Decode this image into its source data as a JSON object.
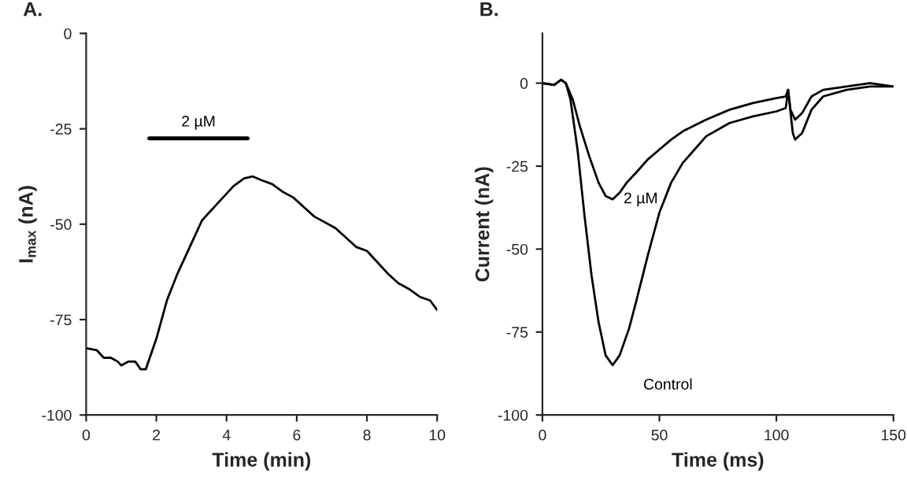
{
  "chart_data": [
    {
      "type": "line",
      "title": "A.",
      "xlabel": "Time (min)",
      "ylabel": "I$_{max}$ (nA)",
      "xlim": [
        0,
        10
      ],
      "ylim": [
        -100,
        0
      ],
      "xticks": [
        0,
        2,
        4,
        6,
        8,
        10
      ],
      "yticks": [
        -100,
        -75,
        -50,
        -25,
        0
      ],
      "grid": false,
      "legend": false,
      "series": [
        {
          "color": "#000000",
          "x": [
            0,
            0.3,
            0.5,
            0.7,
            0.9,
            1.0,
            1.2,
            1.4,
            1.55,
            1.7,
            2.0,
            2.3,
            2.6,
            3.0,
            3.3,
            3.6,
            3.9,
            4.2,
            4.5,
            4.75,
            5.0,
            5.3,
            5.6,
            5.9,
            6.2,
            6.5,
            6.8,
            7.1,
            7.4,
            7.7,
            8.0,
            8.3,
            8.6,
            8.9,
            9.2,
            9.5,
            9.8,
            10
          ],
          "values": [
            -82.5,
            -83,
            -85,
            -85,
            -86,
            -87,
            -86,
            -86,
            -88,
            -88,
            -80,
            -70,
            -63,
            -55,
            -49,
            -46,
            -43,
            -40,
            -38,
            -37.5,
            -38.5,
            -39.5,
            -41.5,
            -43,
            -45.5,
            -48,
            -49.5,
            -51,
            -53.5,
            -56,
            -57,
            -60,
            -63,
            -65.5,
            -67,
            -69,
            -70,
            -72.5
          ]
        },
        {
          "name": "2 µM",
          "color": "#000000",
          "x": [
            1.8,
            4.6
          ],
          "values": [
            -27.5,
            -27.5
          ]
        }
      ]
    },
    {
      "type": "line",
      "title": "B.",
      "xlabel": "Time (ms)",
      "ylabel": "Current (nA)",
      "xlim": [
        0,
        150
      ],
      "ylim": [
        -100,
        15
      ],
      "xticks": [
        0,
        50,
        100,
        150
      ],
      "yticks": [
        -100,
        -75,
        -50,
        -25,
        0
      ],
      "grid": false,
      "legend": false,
      "series": [
        {
          "name": "2 µM",
          "color": "#000000",
          "x": [
            0,
            5,
            8,
            10,
            13,
            16,
            20,
            24,
            27,
            30,
            33,
            36,
            40,
            45,
            50,
            55,
            60,
            70,
            80,
            90,
            100,
            104,
            105,
            106,
            108,
            111,
            115,
            120,
            130,
            140,
            150
          ],
          "values": [
            0,
            -0.5,
            1,
            0,
            -5,
            -13,
            -22,
            -30,
            -34,
            -35,
            -33,
            -30,
            -27,
            -23,
            -20,
            -17,
            -14.5,
            -11,
            -8,
            -6,
            -4.5,
            -4,
            -2,
            -8,
            -11,
            -9,
            -4,
            -2,
            -1,
            0,
            -1
          ]
        },
        {
          "name": "Control",
          "color": "#000000",
          "x": [
            0,
            5,
            8,
            10,
            12,
            15,
            18,
            21,
            24,
            27,
            30,
            33,
            37,
            40,
            45,
            50,
            55,
            60,
            65,
            70,
            80,
            90,
            100,
            104,
            105,
            107,
            108,
            111,
            115,
            120,
            130,
            140,
            150
          ],
          "values": [
            0,
            -0.5,
            1,
            0,
            -5,
            -20,
            -40,
            -58,
            -72,
            -82,
            -85,
            -82,
            -74,
            -66,
            -52,
            -39,
            -30,
            -24,
            -20,
            -16,
            -12,
            -10,
            -8.5,
            -7.5,
            -2,
            -15,
            -17,
            -15,
            -8,
            -4,
            -2,
            -1,
            -1
          ]
        }
      ]
    }
  ]
}
